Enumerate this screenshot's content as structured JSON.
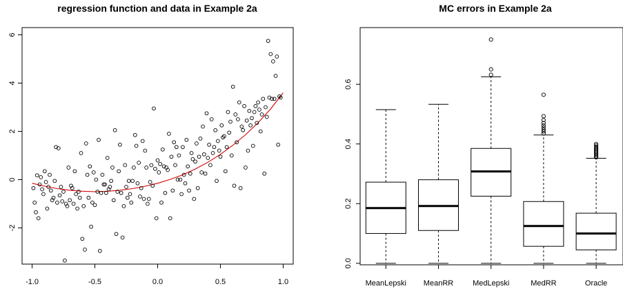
{
  "chart_data": [
    {
      "type": "scatter",
      "title": "regression function and data in Example 2a",
      "xlabel": "",
      "ylabel": "",
      "xlim": [
        -1.08,
        1.08
      ],
      "ylim": [
        -3.5,
        6.3
      ],
      "x_ticks": [
        -1.0,
        -0.5,
        0.0,
        0.5,
        1.0
      ],
      "x_tick_labels": [
        "-1.0",
        "-0.5",
        "0.0",
        "0.5",
        "1.0"
      ],
      "y_ticks": [
        -2,
        0,
        2,
        4,
        6
      ],
      "y_tick_labels": [
        "-2",
        "0",
        "2",
        "4",
        "6"
      ],
      "grid": false,
      "point_color": "#000000",
      "curve_color": "#d40000",
      "points": [
        [
          -0.99,
          -0.35
        ],
        [
          -0.98,
          -0.95
        ],
        [
          -0.97,
          -1.35
        ],
        [
          -0.96,
          0.18
        ],
        [
          -0.95,
          -1.6
        ],
        [
          -0.94,
          -0.2
        ],
        [
          -0.93,
          0.1
        ],
        [
          -0.92,
          -0.4
        ],
        [
          -0.91,
          -0.6
        ],
        [
          -0.9,
          0.35
        ],
        [
          -0.89,
          -0.1
        ],
        [
          -0.88,
          -1.2
        ],
        [
          -0.87,
          -0.3
        ],
        [
          -0.86,
          0.2
        ],
        [
          -0.85,
          -0.45
        ],
        [
          -0.84,
          -0.85
        ],
        [
          -0.83,
          -0.75
        ],
        [
          -0.82,
          -0.05
        ],
        [
          -0.81,
          1.35
        ],
        [
          -0.8,
          -0.95
        ],
        [
          -0.79,
          1.3
        ],
        [
          -0.78,
          -0.65
        ],
        [
          -0.77,
          -0.3
        ],
        [
          -0.76,
          -0.9
        ],
        [
          -0.75,
          -0.5
        ],
        [
          -0.74,
          -3.35
        ],
        [
          -0.73,
          -1.0
        ],
        [
          -0.72,
          -1.1
        ],
        [
          -0.71,
          0.5
        ],
        [
          -0.7,
          -0.85
        ],
        [
          -0.69,
          -0.25
        ],
        [
          -0.68,
          -0.35
        ],
        [
          -0.67,
          -1.0
        ],
        [
          -0.66,
          0.35
        ],
        [
          -0.65,
          -0.6
        ],
        [
          -0.64,
          -1.2
        ],
        [
          -0.63,
          -0.5
        ],
        [
          -0.62,
          -0.75
        ],
        [
          -0.61,
          1.1
        ],
        [
          -0.6,
          -2.45
        ],
        [
          -0.59,
          -1.1
        ],
        [
          -0.58,
          -2.9
        ],
        [
          -0.57,
          1.5
        ],
        [
          -0.56,
          0.2
        ],
        [
          -0.55,
          -0.75
        ],
        [
          -0.54,
          0.55
        ],
        [
          -0.53,
          -1.95
        ],
        [
          -0.52,
          -0.95
        ],
        [
          -0.51,
          0.3
        ],
        [
          -0.5,
          -1.05
        ],
        [
          -0.49,
          0.0
        ],
        [
          -0.48,
          -0.5
        ],
        [
          -0.47,
          1.65
        ],
        [
          -0.46,
          -2.95
        ],
        [
          -0.45,
          -0.55
        ],
        [
          -0.44,
          0.2
        ],
        [
          -0.43,
          -0.2
        ],
        [
          -0.42,
          -0.2
        ],
        [
          -0.41,
          -0.55
        ],
        [
          -0.4,
          0.9
        ],
        [
          -0.39,
          -0.4
        ],
        [
          -0.38,
          -0.3
        ],
        [
          -0.37,
          -0.05
        ],
        [
          -0.36,
          0.5
        ],
        [
          -0.35,
          -0.85
        ],
        [
          -0.34,
          2.05
        ],
        [
          -0.33,
          -2.25
        ],
        [
          -0.32,
          -0.5
        ],
        [
          -0.31,
          0.35
        ],
        [
          -0.3,
          1.45
        ],
        [
          -0.29,
          -0.55
        ],
        [
          -0.28,
          -2.4
        ],
        [
          -0.27,
          -1.1
        ],
        [
          -0.26,
          0.6
        ],
        [
          -0.25,
          -0.3
        ],
        [
          -0.24,
          -0.75
        ],
        [
          -0.23,
          -0.05
        ],
        [
          -0.22,
          -0.6
        ],
        [
          -0.21,
          -0.95
        ],
        [
          -0.2,
          -0.05
        ],
        [
          -0.19,
          0.5
        ],
        [
          -0.18,
          1.85
        ],
        [
          -0.17,
          1.4
        ],
        [
          -0.16,
          -0.15
        ],
        [
          -0.15,
          0.7
        ],
        [
          -0.14,
          -0.7
        ],
        [
          -0.13,
          -0.35
        ],
        [
          -0.12,
          1.6
        ],
        [
          -0.11,
          -0.8
        ],
        [
          -0.1,
          1.2
        ],
        [
          -0.09,
          0.5
        ],
        [
          -0.08,
          -1.0
        ],
        [
          -0.07,
          -0.8
        ],
        [
          -0.06,
          -0.1
        ],
        [
          -0.05,
          0.6
        ],
        [
          -0.04,
          -0.25
        ],
        [
          -0.03,
          2.95
        ],
        [
          -0.02,
          0.45
        ],
        [
          -0.01,
          -1.6
        ],
        [
          0.0,
          0.8
        ],
        [
          0.01,
          0.3
        ],
        [
          0.02,
          0.65
        ],
        [
          0.03,
          -0.95
        ],
        [
          0.04,
          1.25
        ],
        [
          0.05,
          0.55
        ],
        [
          0.06,
          -0.55
        ],
        [
          0.07,
          0.5
        ],
        [
          0.08,
          0.4
        ],
        [
          0.09,
          1.9
        ],
        [
          0.1,
          -1.6
        ],
        [
          0.11,
          0.95
        ],
        [
          0.12,
          -0.45
        ],
        [
          0.13,
          1.55
        ],
        [
          0.14,
          0.6
        ],
        [
          0.15,
          1.35
        ],
        [
          0.16,
          0.0
        ],
        [
          0.17,
          1.0
        ],
        [
          0.18,
          0.0
        ],
        [
          0.19,
          -0.6
        ],
        [
          0.2,
          1.35
        ],
        [
          0.21,
          0.2
        ],
        [
          0.22,
          -0.15
        ],
        [
          0.23,
          1.65
        ],
        [
          0.24,
          0.55
        ],
        [
          0.25,
          -0.45
        ],
        [
          0.26,
          0.25
        ],
        [
          0.27,
          1.1
        ],
        [
          0.28,
          0.85
        ],
        [
          0.29,
          -0.8
        ],
        [
          0.3,
          0.75
        ],
        [
          0.31,
          1.5
        ],
        [
          0.32,
          -0.35
        ],
        [
          0.33,
          0.95
        ],
        [
          0.34,
          1.7
        ],
        [
          0.35,
          0.3
        ],
        [
          0.36,
          2.2
        ],
        [
          0.37,
          1.05
        ],
        [
          0.38,
          0.25
        ],
        [
          0.39,
          2.75
        ],
        [
          0.4,
          0.9
        ],
        [
          0.41,
          1.45
        ],
        [
          0.42,
          0.6
        ],
        [
          0.43,
          2.5
        ],
        [
          0.44,
          1.1
        ],
        [
          0.45,
          1.35
        ],
        [
          0.46,
          2.05
        ],
        [
          0.47,
          -0.05
        ],
        [
          0.48,
          1.6
        ],
        [
          0.49,
          1.2
        ],
        [
          0.5,
          0.95
        ],
        [
          0.51,
          2.25
        ],
        [
          0.52,
          1.75
        ],
        [
          0.53,
          1.8
        ],
        [
          0.54,
          0.35
        ],
        [
          0.55,
          1.35
        ],
        [
          0.56,
          2.8
        ],
        [
          0.57,
          1.95
        ],
        [
          0.58,
          2.4
        ],
        [
          0.59,
          1.0
        ],
        [
          0.6,
          3.85
        ],
        [
          0.61,
          -0.25
        ],
        [
          0.62,
          2.7
        ],
        [
          0.63,
          1.55
        ],
        [
          0.64,
          2.5
        ],
        [
          0.65,
          3.2
        ],
        [
          0.66,
          -0.35
        ],
        [
          0.67,
          2.2
        ],
        [
          0.68,
          2.05
        ],
        [
          0.69,
          3.05
        ],
        [
          0.7,
          0.5
        ],
        [
          0.71,
          2.45
        ],
        [
          0.72,
          1.2
        ],
        [
          0.73,
          2.85
        ],
        [
          0.74,
          2.25
        ],
        [
          0.75,
          2.55
        ],
        [
          0.76,
          1.4
        ],
        [
          0.77,
          2.8
        ],
        [
          0.78,
          3.05
        ],
        [
          0.79,
          2.35
        ],
        [
          0.8,
          3.2
        ],
        [
          0.81,
          2.9
        ],
        [
          0.82,
          2.0
        ],
        [
          0.83,
          2.7
        ],
        [
          0.84,
          3.35
        ],
        [
          0.85,
          0.25
        ],
        [
          0.86,
          3.0
        ],
        [
          0.87,
          2.6
        ],
        [
          0.88,
          5.75
        ],
        [
          0.89,
          3.4
        ],
        [
          0.9,
          5.2
        ],
        [
          0.91,
          3.35
        ],
        [
          0.92,
          4.9
        ],
        [
          0.93,
          3.35
        ],
        [
          0.94,
          4.3
        ],
        [
          0.95,
          5.1
        ],
        [
          0.96,
          1.45
        ],
        [
          0.97,
          3.45
        ],
        [
          0.98,
          3.4
        ]
      ],
      "curve": {
        "x": [
          -1.0,
          -0.9,
          -0.8,
          -0.7,
          -0.6,
          -0.5,
          -0.4,
          -0.3,
          -0.2,
          -0.1,
          0.0,
          0.1,
          0.2,
          0.3,
          0.4,
          0.5,
          0.6,
          0.7,
          0.8,
          0.9,
          1.0
        ],
        "y": [
          -0.15,
          -0.27,
          -0.37,
          -0.44,
          -0.48,
          -0.5,
          -0.48,
          -0.44,
          -0.37,
          -0.27,
          -0.15,
          0.01,
          0.2,
          0.44,
          0.72,
          1.05,
          1.43,
          1.86,
          2.36,
          2.93,
          3.6
        ]
      }
    },
    {
      "type": "boxplot",
      "title": "MC errors in Example 2a",
      "xlabel": "",
      "ylabel": "",
      "ylim": [
        -0.005,
        0.79
      ],
      "y_ticks": [
        0.0,
        0.2,
        0.4,
        0.6
      ],
      "y_tick_labels": [
        "0.0",
        "0.2",
        "0.4",
        "0.6"
      ],
      "grid": false,
      "categories": [
        "MeanLepski",
        "MeanRR",
        "MedLepski",
        "MedRR",
        "Oracle"
      ],
      "boxes": [
        {
          "name": "MeanLepski",
          "min": 0.0,
          "q1": 0.1,
          "median": 0.185,
          "q3": 0.272,
          "max": 0.515,
          "outliers": []
        },
        {
          "name": "MeanRR",
          "min": 0.0,
          "q1": 0.11,
          "median": 0.192,
          "q3": 0.28,
          "max": 0.533,
          "outliers": []
        },
        {
          "name": "MedLepski",
          "min": 0.0,
          "q1": 0.225,
          "median": 0.308,
          "q3": 0.385,
          "max": 0.625,
          "outliers": [
            0.632,
            0.65,
            0.75
          ]
        },
        {
          "name": "MedRR",
          "min": 0.0,
          "q1": 0.057,
          "median": 0.125,
          "q3": 0.207,
          "max": 0.43,
          "outliers": [
            0.435,
            0.442,
            0.448,
            0.455,
            0.462,
            0.47,
            0.48,
            0.493,
            0.565
          ]
        },
        {
          "name": "Oracle",
          "min": 0.0,
          "q1": 0.045,
          "median": 0.1,
          "q3": 0.168,
          "max": 0.352,
          "outliers": [
            0.355,
            0.358,
            0.362,
            0.366,
            0.37,
            0.374,
            0.378,
            0.382,
            0.386,
            0.39,
            0.395,
            0.4
          ]
        }
      ]
    }
  ]
}
